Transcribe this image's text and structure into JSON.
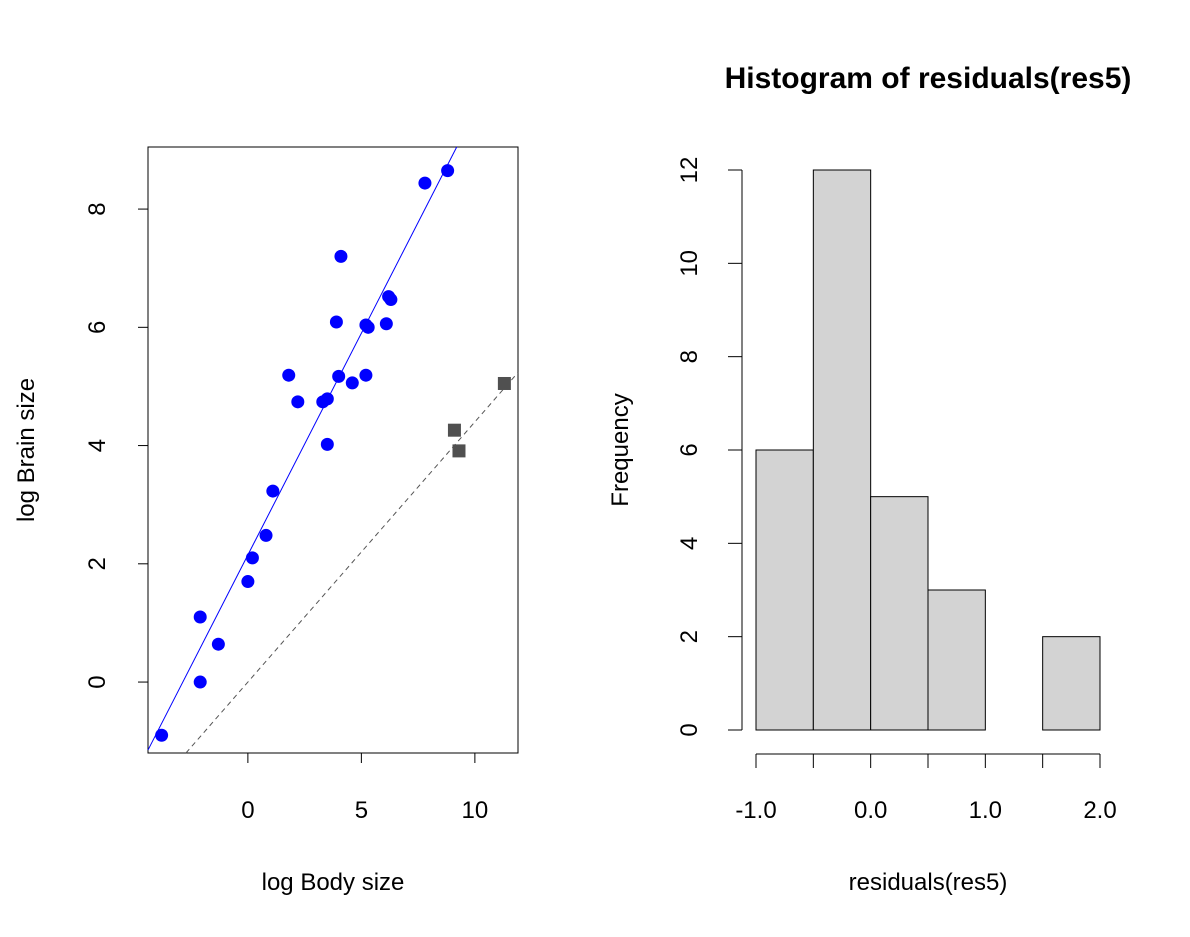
{
  "chart_data": [
    {
      "type": "scatter",
      "title": "",
      "xlabel": "log Body size",
      "ylabel": "log Brain size",
      "xlim": [
        -4.4,
        11.9
      ],
      "ylim": [
        -1.2,
        9.05
      ],
      "xticks": [
        0,
        5,
        10
      ],
      "yticks": [
        0,
        2,
        4,
        6,
        8
      ],
      "grid": false,
      "series": [
        {
          "marker": "circle",
          "color": "#0000ff",
          "points": [
            [
              -3.8,
              -0.9
            ],
            [
              -2.1,
              1.1
            ],
            [
              -2.1,
              0.0
            ],
            [
              -1.3,
              0.64
            ],
            [
              0.0,
              1.7
            ],
            [
              0.2,
              2.1
            ],
            [
              0.8,
              2.48
            ],
            [
              1.1,
              3.23
            ],
            [
              1.8,
              5.19
            ],
            [
              2.2,
              4.74
            ],
            [
              3.3,
              4.74
            ],
            [
              3.5,
              4.02
            ],
            [
              3.5,
              4.79
            ],
            [
              3.9,
              6.09
            ],
            [
              4.0,
              5.17
            ],
            [
              4.1,
              7.2
            ],
            [
              4.6,
              5.06
            ],
            [
              5.2,
              5.19
            ],
            [
              5.2,
              6.04
            ],
            [
              5.3,
              6.0
            ],
            [
              6.1,
              6.06
            ],
            [
              6.2,
              6.52
            ],
            [
              6.3,
              6.47
            ],
            [
              7.8,
              8.44
            ],
            [
              8.8,
              8.65
            ]
          ]
        },
        {
          "marker": "square",
          "color": "#505050",
          "points": [
            [
              9.1,
              4.26
            ],
            [
              9.3,
              3.91
            ],
            [
              11.3,
              5.05
            ]
          ]
        }
      ],
      "lines": [
        {
          "style": "solid",
          "color": "#0000ff",
          "intercept": 2.15,
          "slope": 0.75
        },
        {
          "style": "dashed",
          "color": "#555555",
          "intercept": 0.0,
          "slope": 0.44
        }
      ]
    },
    {
      "type": "bar",
      "title": "Histogram of residuals(res5)",
      "xlabel": "residuals(res5)",
      "ylabel": "Frequency",
      "bin_edges": [
        -1.0,
        -0.5,
        0.0,
        0.5,
        1.0,
        1.5,
        2.0
      ],
      "values": [
        6,
        12,
        5,
        3,
        0,
        2
      ],
      "bar_color": "#d3d3d3",
      "xticks": [
        -1.0,
        -0.5,
        0.0,
        0.5,
        1.0,
        1.5,
        2.0
      ],
      "xtick_labels": [
        "-1.0",
        "",
        "0.0",
        "",
        "1.0",
        "",
        "2.0"
      ],
      "yticks": [
        0,
        2,
        4,
        6,
        8,
        10,
        12
      ],
      "ylim": [
        0,
        12
      ],
      "grid": false
    }
  ]
}
